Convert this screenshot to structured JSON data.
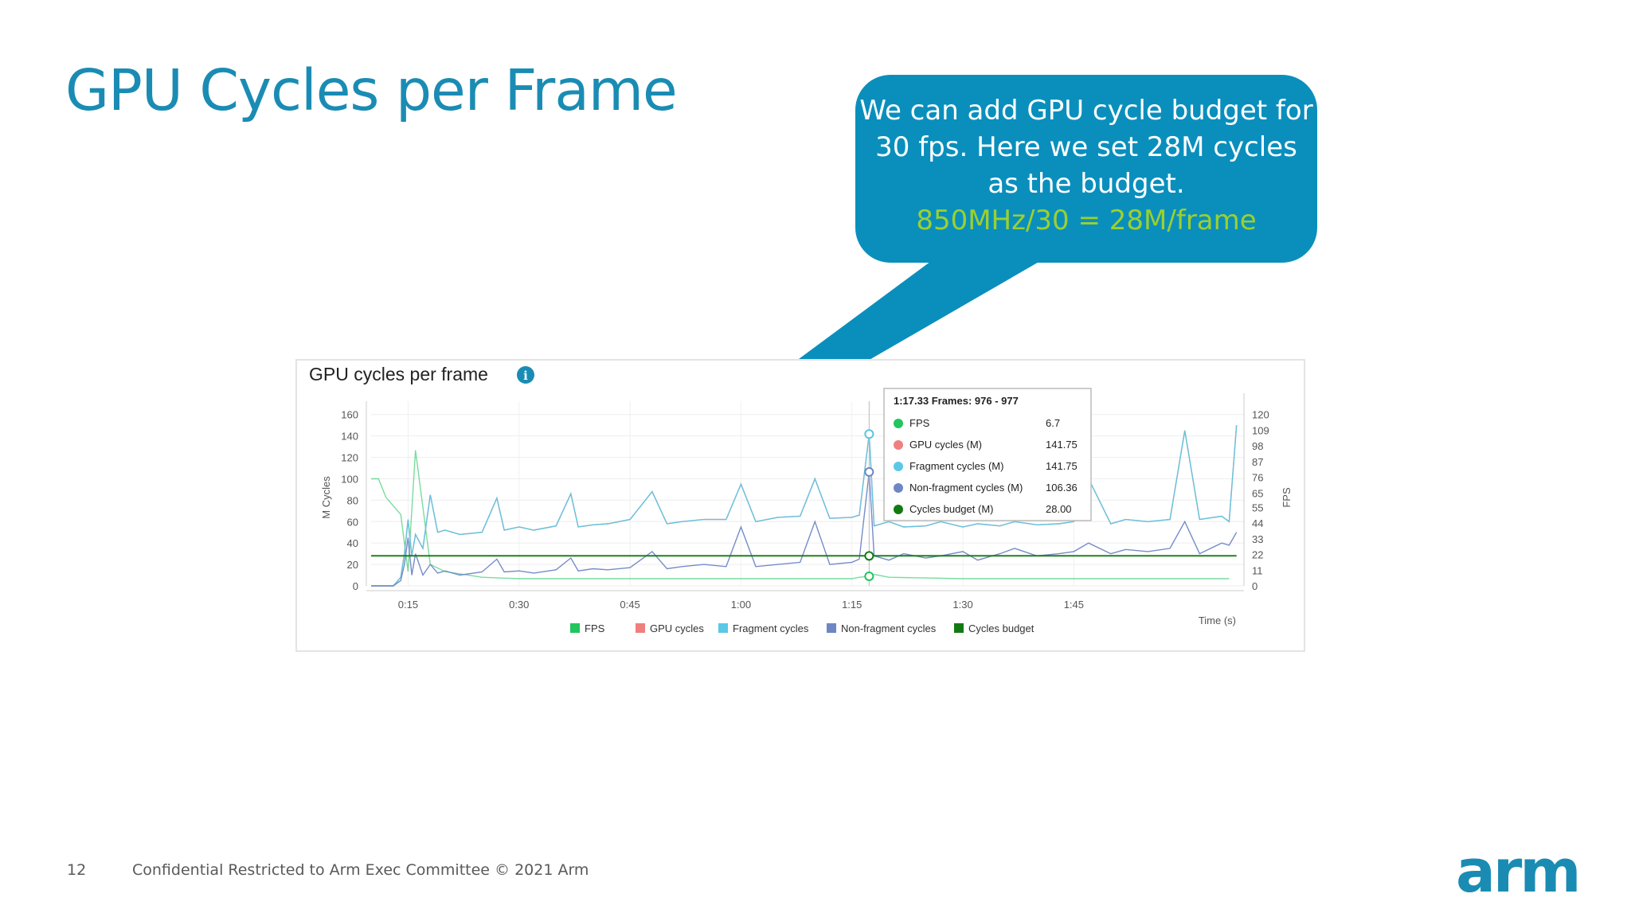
{
  "slide": {
    "title": "GPU Cycles per Frame",
    "page_number": "12",
    "footer_text": "Confidential Restricted to Arm Exec Committee © 2021 Arm",
    "logo": "arm"
  },
  "callout": {
    "line1": "We can add GPU cycle budget for",
    "line2": "30 fps. Here we set 28M cycles",
    "line3": "as the budget.",
    "formula": "850MHz/30 = 28M/frame"
  },
  "colors": {
    "accent": "#1a8cb4",
    "callout_bg": "#0a8fbd",
    "formula": "#9cd02e",
    "fps": "#22c55e",
    "gpu_cycles": "#f08080",
    "fragment_cycles": "#5bc8e6",
    "non_fragment_cycles": "#6f86c6",
    "cycles_budget": "#137a13"
  },
  "chart_data": {
    "type": "line",
    "title": "GPU cycles per frame",
    "info_icon": "info-icon",
    "xlabel": "Time (s)",
    "ylabel": "M Cycles",
    "y2label": "FPS",
    "xlim": [
      10,
      128
    ],
    "ylim": [
      0,
      165
    ],
    "y2lim": [
      0,
      123.75
    ],
    "x_ticks": [
      {
        "v": 15,
        "label": "0:15"
      },
      {
        "v": 30,
        "label": "0:30"
      },
      {
        "v": 45,
        "label": "0:45"
      },
      {
        "v": 60,
        "label": "1:00"
      },
      {
        "v": 75,
        "label": "1:15"
      },
      {
        "v": 90,
        "label": "1:30"
      },
      {
        "v": 105,
        "label": "1:45"
      }
    ],
    "y_ticks": [
      0,
      20,
      40,
      60,
      80,
      100,
      120,
      140,
      160
    ],
    "y2_ticks": [
      0,
      11,
      22,
      33,
      44,
      55,
      65,
      76,
      87,
      98,
      109,
      120
    ],
    "grid": true,
    "legend_position": "bottom",
    "cycles_budget": 28,
    "hover_x": 77.33,
    "series": [
      {
        "name": "FPS",
        "key": "fps",
        "x": [
          10,
          11,
          12,
          14,
          15,
          16,
          18,
          20,
          25,
          30,
          40,
          50,
          60,
          70,
          75,
          76,
          77.33,
          78,
          80,
          90,
          100,
          110,
          120,
          126
        ],
        "values": [
          75,
          75,
          62,
          50,
          10,
          95,
          15,
          10,
          6,
          5,
          5,
          5,
          5,
          5,
          5,
          6,
          6.7,
          8,
          6,
          5,
          5,
          5,
          5,
          5
        ]
      },
      {
        "name": "GPU cycles",
        "key": "gpu_cycles",
        "x": [
          10,
          13,
          14,
          14.5,
          15,
          15.5,
          16,
          17,
          18,
          19,
          20,
          22,
          25,
          27,
          28,
          30,
          32,
          35,
          37,
          38,
          40,
          42,
          45,
          48,
          50,
          52,
          55,
          58,
          60,
          62,
          65,
          68,
          70,
          72,
          75,
          76,
          77.33,
          78,
          80,
          82,
          85,
          87,
          90,
          92,
          95,
          97,
          100,
          103,
          105,
          107,
          110,
          112,
          115,
          118,
          120,
          122,
          125,
          126,
          127
        ],
        "values": [
          0,
          0,
          8,
          30,
          62,
          28,
          48,
          35,
          85,
          50,
          52,
          48,
          50,
          82,
          52,
          55,
          52,
          56,
          86,
          55,
          57,
          58,
          62,
          88,
          58,
          60,
          62,
          62,
          95,
          60,
          64,
          65,
          100,
          63,
          64,
          66,
          141.75,
          56,
          60,
          55,
          56,
          60,
          55,
          58,
          56,
          60,
          57,
          58,
          60,
          100,
          58,
          62,
          60,
          62,
          145,
          62,
          65,
          60,
          150
        ]
      },
      {
        "name": "Fragment cycles",
        "key": "fragment_cycles",
        "x": [
          10,
          13,
          14,
          14.5,
          15,
          15.5,
          16,
          17,
          18,
          19,
          20,
          22,
          25,
          27,
          28,
          30,
          32,
          35,
          37,
          38,
          40,
          42,
          45,
          48,
          50,
          52,
          55,
          58,
          60,
          62,
          65,
          68,
          70,
          72,
          75,
          76,
          77.33,
          78,
          80,
          82,
          85,
          87,
          90,
          92,
          95,
          97,
          100,
          103,
          105,
          107,
          110,
          112,
          115,
          118,
          120,
          122,
          125,
          126,
          127
        ],
        "values": [
          0,
          0,
          8,
          30,
          62,
          28,
          48,
          35,
          85,
          50,
          52,
          48,
          50,
          82,
          52,
          55,
          52,
          56,
          86,
          55,
          57,
          58,
          62,
          88,
          58,
          60,
          62,
          62,
          95,
          60,
          64,
          65,
          100,
          63,
          64,
          66,
          141.75,
          56,
          60,
          55,
          56,
          60,
          55,
          58,
          56,
          60,
          57,
          58,
          60,
          100,
          58,
          62,
          60,
          62,
          145,
          62,
          65,
          60,
          150
        ]
      },
      {
        "name": "Non-fragment cycles",
        "key": "non_fragment_cycles",
        "x": [
          10,
          13,
          14,
          14.5,
          15,
          15.5,
          16,
          17,
          18,
          19,
          20,
          22,
          25,
          27,
          28,
          30,
          32,
          35,
          37,
          38,
          40,
          42,
          45,
          48,
          50,
          52,
          55,
          58,
          60,
          62,
          65,
          68,
          70,
          72,
          75,
          76,
          77.33,
          78,
          80,
          82,
          85,
          87,
          90,
          92,
          95,
          97,
          100,
          103,
          105,
          107,
          110,
          112,
          115,
          118,
          120,
          122,
          125,
          126,
          127
        ],
        "values": [
          0,
          0,
          5,
          20,
          45,
          10,
          30,
          10,
          20,
          12,
          14,
          10,
          13,
          25,
          13,
          14,
          12,
          15,
          26,
          14,
          16,
          15,
          17,
          32,
          16,
          18,
          20,
          18,
          55,
          18,
          20,
          22,
          60,
          20,
          22,
          25,
          106.36,
          28,
          24,
          30,
          26,
          28,
          32,
          24,
          30,
          35,
          28,
          30,
          32,
          40,
          30,
          34,
          32,
          35,
          60,
          30,
          40,
          38,
          50
        ]
      },
      {
        "name": "Cycles budget",
        "key": "cycles_budget",
        "x": [
          10,
          127
        ],
        "values": [
          28,
          28
        ]
      }
    ],
    "tooltip": {
      "header": "1:17.33 Frames: 976 - 977",
      "rows": [
        {
          "label": "FPS",
          "value": "6.7",
          "key": "fps"
        },
        {
          "label": "GPU cycles (M)",
          "value": "141.75",
          "key": "gpu_cycles"
        },
        {
          "label": "Fragment cycles (M)",
          "value": "141.75",
          "key": "fragment_cycles"
        },
        {
          "label": "Non-fragment cycles (M)",
          "value": "106.36",
          "key": "non_fragment_cycles"
        },
        {
          "label": "Cycles budget (M)",
          "value": "28.00",
          "key": "cycles_budget"
        }
      ]
    }
  }
}
